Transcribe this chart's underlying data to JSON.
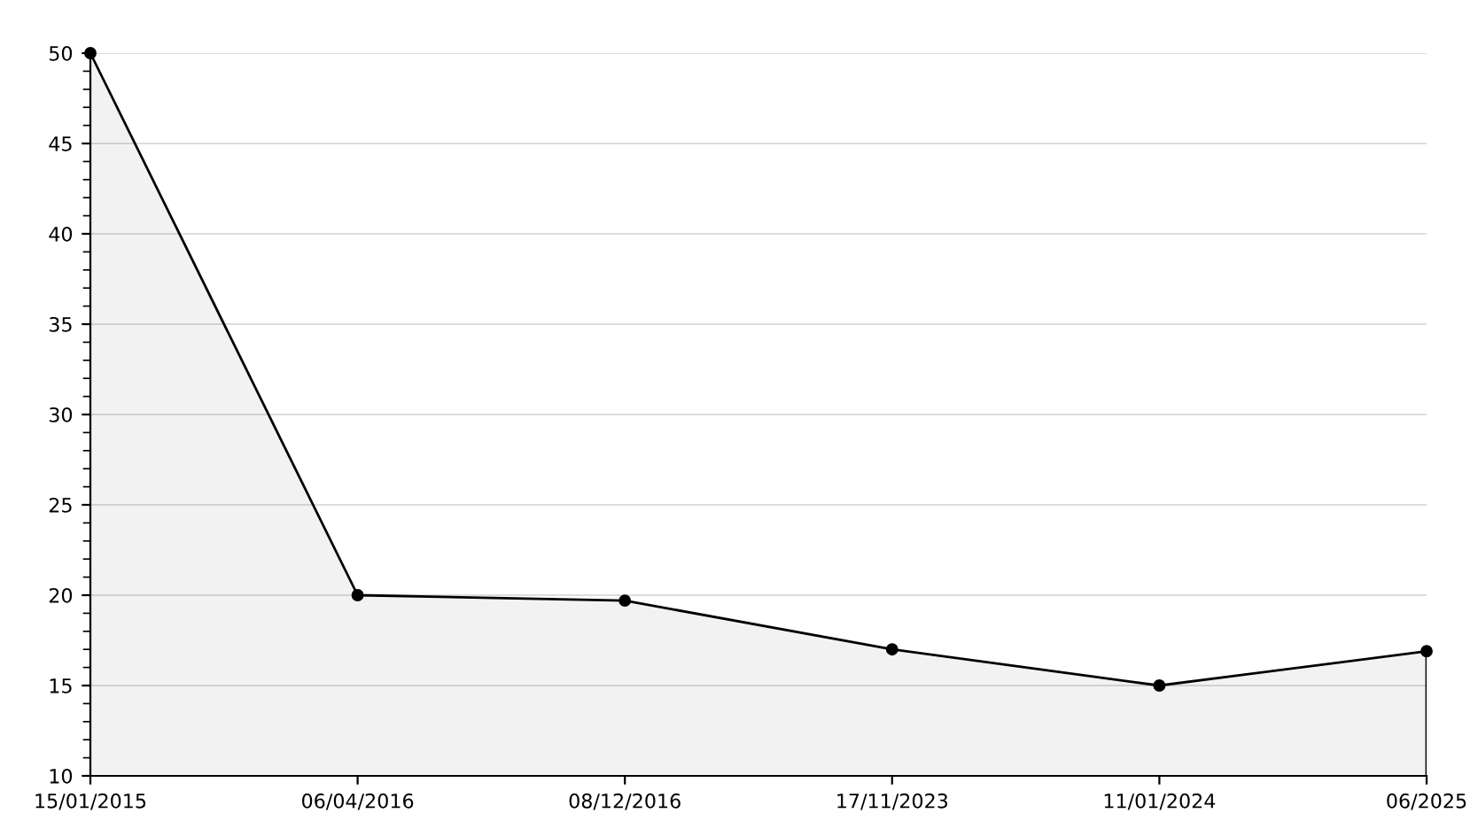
{
  "chart_data": {
    "type": "area",
    "categories": [
      "15/01/2015",
      "06/04/2016",
      "08/12/2016",
      "17/11/2023",
      "11/01/2024",
      "06/2025"
    ],
    "series": [
      {
        "color": "#000000",
        "values": [
          50,
          20,
          19.7,
          17,
          15,
          16.9
        ]
      }
    ],
    "ylim": [
      10,
      50
    ],
    "yticks": [
      10,
      15,
      20,
      25,
      30,
      35,
      40,
      45,
      50
    ],
    "grid": "y",
    "marker": "circle",
    "line_style": "solid",
    "legend": false
  }
}
